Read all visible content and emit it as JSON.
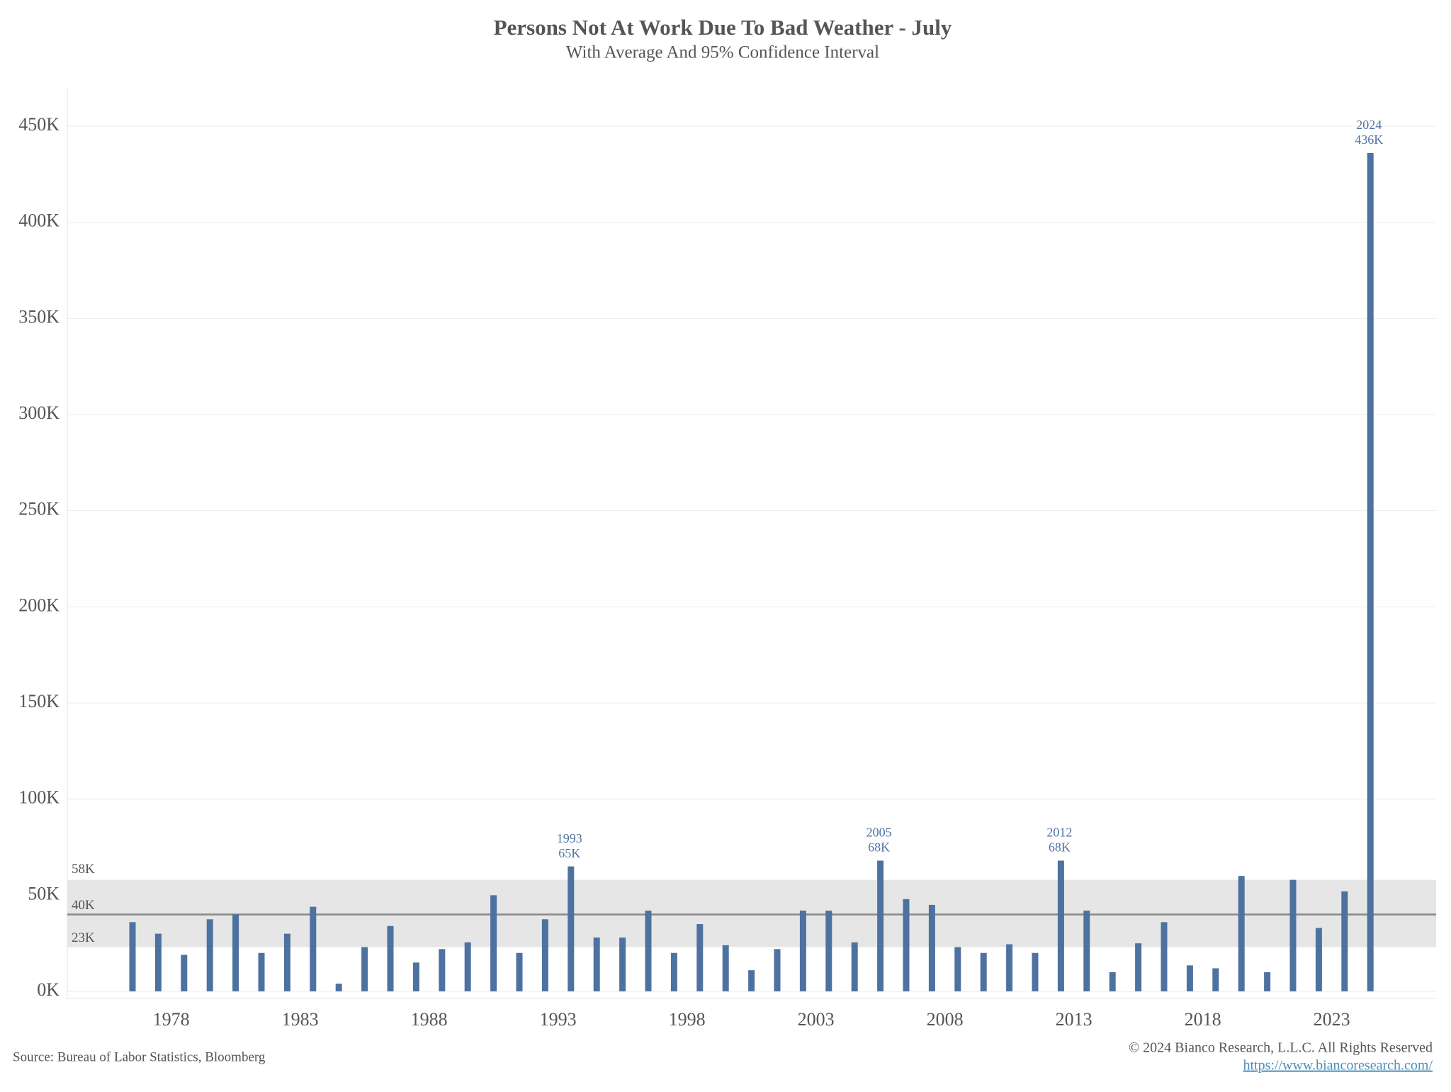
{
  "chart_data": {
    "type": "bar",
    "title": "Persons Not At Work Due To Bad Weather - July",
    "subtitle": "With Average And 95% Confidence Interval",
    "source": "Source:  Bureau of Labor Statistics, Bloomberg",
    "copyright": "© 2024 Bianco Research, L.L.C. All Rights Reserved",
    "url": "https://www.biancoresearch.com/",
    "color": "#4e72a0",
    "categories": [
      1976,
      1977,
      1978,
      1979,
      1980,
      1981,
      1982,
      1983,
      1984,
      1985,
      1986,
      1987,
      1988,
      1989,
      1990,
      1991,
      1992,
      1993,
      1994,
      1995,
      1996,
      1997,
      1998,
      1999,
      2000,
      2001,
      2002,
      2003,
      2004,
      2005,
      2006,
      2007,
      2008,
      2009,
      2010,
      2011,
      2012,
      2013,
      2014,
      2015,
      2016,
      2017,
      2018,
      2019,
      2020,
      2021,
      2022,
      2023,
      2024
    ],
    "values": [
      36,
      30,
      19,
      37.5,
      40,
      20,
      30,
      44,
      4,
      23,
      34,
      15,
      22,
      25.5,
      50,
      20,
      37.5,
      65,
      28,
      28,
      42,
      20,
      35,
      24,
      11,
      22,
      42,
      42,
      25.5,
      68,
      48,
      45,
      23,
      20,
      24.5,
      20,
      68,
      42,
      10,
      25,
      36,
      13.5,
      12,
      60,
      10,
      58,
      33,
      52,
      436
    ],
    "value_labels": [
      null,
      null,
      null,
      null,
      null,
      null,
      null,
      null,
      null,
      null,
      null,
      null,
      null,
      null,
      null,
      null,
      null,
      "65K",
      null,
      null,
      null,
      null,
      null,
      null,
      null,
      null,
      null,
      null,
      null,
      "68K",
      null,
      null,
      null,
      null,
      null,
      null,
      "68K",
      null,
      null,
      null,
      null,
      null,
      null,
      null,
      null,
      null,
      null,
      null,
      "436K"
    ],
    "average": {
      "value": 40,
      "label": "40K"
    },
    "confidence_band": {
      "low": 23,
      "high": 58,
      "low_label": "23K",
      "high_label": "58K"
    },
    "xticks": [
      1978,
      1983,
      1988,
      1993,
      1998,
      2003,
      2008,
      2013,
      2018,
      2023
    ],
    "ylim": [
      0,
      470
    ],
    "yticks": [
      {
        "value": 0,
        "label": "0K"
      },
      {
        "value": 50,
        "label": "50K"
      },
      {
        "value": 100,
        "label": "100K"
      },
      {
        "value": 150,
        "label": "150K"
      },
      {
        "value": 200,
        "label": "200K"
      },
      {
        "value": 250,
        "label": "250K"
      },
      {
        "value": 300,
        "label": "300K"
      },
      {
        "value": 350,
        "label": "350K"
      },
      {
        "value": 400,
        "label": "400K"
      },
      {
        "value": 450,
        "label": "450K"
      }
    ],
    "grid": true
  }
}
